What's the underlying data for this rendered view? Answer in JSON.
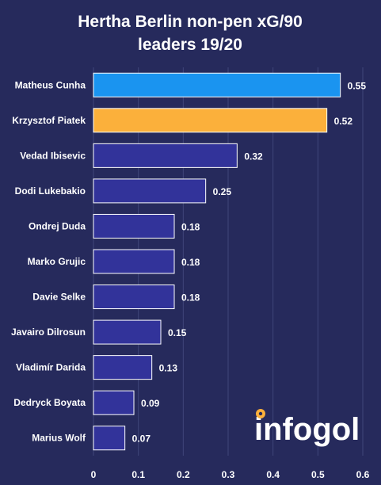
{
  "chart_data": {
    "type": "bar",
    "orientation": "horizontal",
    "title": "Hertha Berlin non-pen xG/90 leaders 19/20",
    "title_lines": [
      "Hertha Berlin  non-pen xG/90",
      "leaders 19/20"
    ],
    "categories": [
      "Matheus Cunha",
      "Krzysztof Piatek",
      "Vedad Ibisevic",
      "Dodi Lukebakio",
      "Ondrej Duda",
      "Marko Grujic",
      "Davie Selke",
      "Javairo Dilrosun",
      "Vladimír Darida",
      "Dedryck Boyata",
      "Marius Wolf"
    ],
    "values": [
      0.55,
      0.52,
      0.32,
      0.25,
      0.18,
      0.18,
      0.18,
      0.15,
      0.13,
      0.09,
      0.07
    ],
    "value_labels": [
      "0.55",
      "0.52",
      "0.32",
      "0.25",
      "0.18",
      "0.18",
      "0.18",
      "0.15",
      "0.13",
      "0.09",
      "0.07"
    ],
    "bar_colors": [
      "#1a94f0",
      "#fbb03b",
      "#32339a",
      "#32339a",
      "#32339a",
      "#32339a",
      "#32339a",
      "#32339a",
      "#32339a",
      "#32339a",
      "#32339a"
    ],
    "xlim": [
      0,
      0.6
    ],
    "xticks": [
      0,
      0.1,
      0.2,
      0.3,
      0.4,
      0.5,
      0.6
    ],
    "xtick_labels": [
      "0",
      "0.1",
      "0.2",
      "0.3",
      "0.4",
      "0.5",
      "0.6"
    ],
    "xlabel": "",
    "ylabel": "",
    "grid": true
  },
  "colors": {
    "background": "#262a5c",
    "grid": "#40467a",
    "bar_border": "#ffffff",
    "text": "#ffffff",
    "logo_ball": "#fbb03b"
  },
  "logo": {
    "text_before": "info",
    "text_after": "gol",
    "icon": "football-icon"
  }
}
